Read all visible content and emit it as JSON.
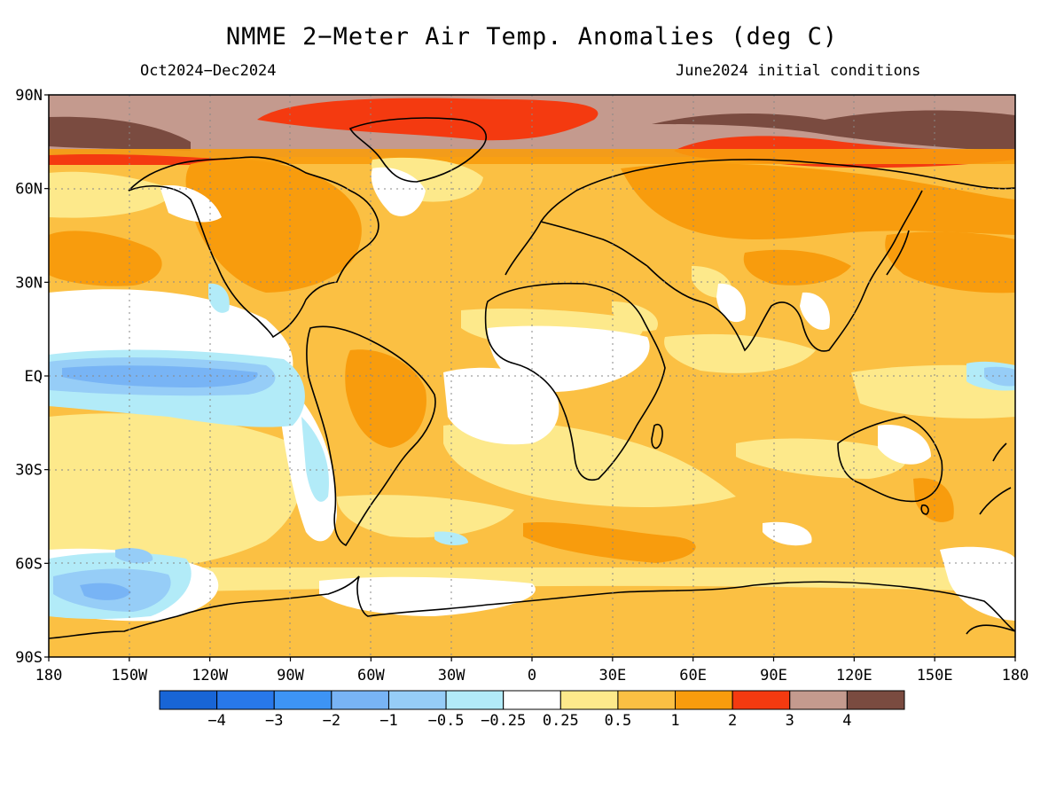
{
  "title": "NMME 2−Meter Air Temp. Anomalies (deg C)",
  "period": "Oct2024−Dec2024",
  "init": "June2024 initial conditions",
  "lat_labels": [
    {
      "lat": 90,
      "text": "90N"
    },
    {
      "lat": 60,
      "text": "60N"
    },
    {
      "lat": 30,
      "text": "30N"
    },
    {
      "lat": 0,
      "text": "EQ"
    },
    {
      "lat": -30,
      "text": "30S"
    },
    {
      "lat": -60,
      "text": "60S"
    },
    {
      "lat": -90,
      "text": "90S"
    }
  ],
  "lon_labels": [
    {
      "lon": -180,
      "text": "180"
    },
    {
      "lon": -150,
      "text": "150W"
    },
    {
      "lon": -120,
      "text": "120W"
    },
    {
      "lon": -90,
      "text": "90W"
    },
    {
      "lon": -60,
      "text": "60W"
    },
    {
      "lon": -30,
      "text": "30W"
    },
    {
      "lon": 0,
      "text": "0"
    },
    {
      "lon": 30,
      "text": "30E"
    },
    {
      "lon": 60,
      "text": "60E"
    },
    {
      "lon": 90,
      "text": "90E"
    },
    {
      "lon": 120,
      "text": "120E"
    },
    {
      "lon": 150,
      "text": "150E"
    },
    {
      "lon": 180,
      "text": "180"
    }
  ],
  "colorbar": {
    "colors": [
      "#1865d6",
      "#2878ea",
      "#3d94f5",
      "#78b4f5",
      "#96cdf7",
      "#b2ebf8",
      "#ffffff",
      "#fde98b",
      "#fbc043",
      "#f89c0d",
      "#f43a10",
      "#c49a8e",
      "#7a4b40"
    ],
    "labels": [
      "−4",
      "−3",
      "−2",
      "−1",
      "−0.5",
      "−0.25",
      "0.25",
      "0.5",
      "1",
      "2",
      "3",
      "4"
    ]
  },
  "colors": {
    "background": "#fbc043",
    "land_outline": "#000000",
    "grid": "#888888"
  }
}
